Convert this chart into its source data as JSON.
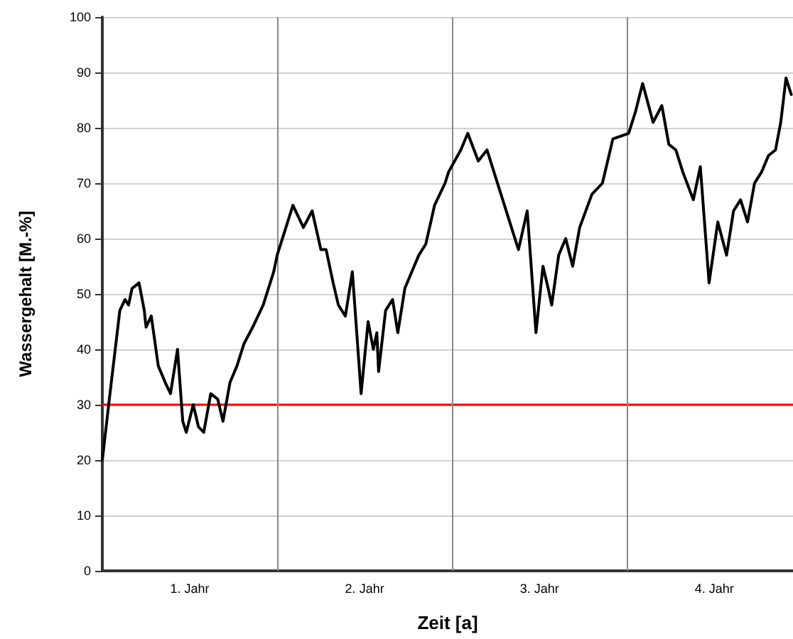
{
  "chart_data": {
    "type": "line",
    "xlabel": "Zeit [a]",
    "ylabel": "Wassergehalt [M.-%]",
    "xlim": [
      0,
      3.95
    ],
    "ylim": [
      0,
      100
    ],
    "xticks": [
      {
        "value": 0.5,
        "label": "1. Jahr"
      },
      {
        "value": 1.5,
        "label": "2. Jahr"
      },
      {
        "value": 2.5,
        "label": "3. Jahr"
      },
      {
        "value": 3.5,
        "label": "4. Jahr"
      }
    ],
    "yticks": [
      0,
      10,
      20,
      30,
      40,
      50,
      60,
      70,
      80,
      90,
      100
    ],
    "grid": "y",
    "marker": "none",
    "line_style": "solid",
    "series": [
      {
        "color": "#000000",
        "x": [
          0,
          0.04,
          0.1,
          0.13,
          0.15,
          0.17,
          0.21,
          0.24,
          0.25,
          0.28,
          0.32,
          0.36,
          0.39,
          0.43,
          0.46,
          0.48,
          0.52,
          0.55,
          0.58,
          0.62,
          0.66,
          0.69,
          0.73,
          0.77,
          0.81,
          0.86,
          0.92,
          0.98,
          1.0,
          1.05,
          1.09,
          1.15,
          1.2,
          1.25,
          1.28,
          1.32,
          1.35,
          1.39,
          1.43,
          1.48,
          1.52,
          1.55,
          1.57,
          1.58,
          1.62,
          1.66,
          1.69,
          1.73,
          1.77,
          1.81,
          1.85,
          1.9,
          1.96,
          1.98,
          2.05,
          2.09,
          2.15,
          2.2,
          2.27,
          2.32,
          2.38,
          2.43,
          2.48,
          2.52,
          2.55,
          2.57,
          2.61,
          2.65,
          2.69,
          2.73,
          2.8,
          2.86,
          2.92,
          3.01,
          3.05,
          3.09,
          3.15,
          3.2,
          3.24,
          3.28,
          3.32,
          3.38,
          3.42,
          3.47,
          3.52,
          3.57,
          3.61,
          3.65,
          3.69,
          3.73,
          3.77,
          3.81,
          3.85,
          3.88,
          3.91,
          3.94
        ],
        "values": [
          20,
          31,
          47,
          49,
          48,
          51,
          52,
          47,
          44,
          46,
          37,
          34,
          32,
          40,
          27,
          25,
          30,
          26,
          25,
          32,
          31,
          27,
          34,
          37,
          41,
          44,
          48,
          54,
          57,
          62,
          66,
          62,
          65,
          58,
          58,
          52,
          48,
          46,
          54,
          32,
          45,
          40,
          43,
          36,
          47,
          49,
          43,
          51,
          54,
          57,
          59,
          66,
          70,
          72,
          76,
          79,
          74,
          76,
          69,
          64,
          58,
          65,
          43,
          55,
          51,
          48,
          57,
          60,
          55,
          62,
          68,
          70,
          78,
          79,
          83,
          88,
          81,
          84,
          77,
          76,
          72,
          67,
          73,
          52,
          63,
          57,
          65,
          67,
          63,
          70,
          72,
          75,
          76,
          81,
          89,
          86
        ]
      }
    ],
    "ref_lines": [
      {
        "axis": "y",
        "value": 30,
        "color": "#ff0000"
      },
      {
        "axis": "x",
        "value": 1,
        "color": "#888888"
      },
      {
        "axis": "x",
        "value": 2,
        "color": "#888888"
      },
      {
        "axis": "x",
        "value": 3,
        "color": "#888888"
      }
    ]
  }
}
